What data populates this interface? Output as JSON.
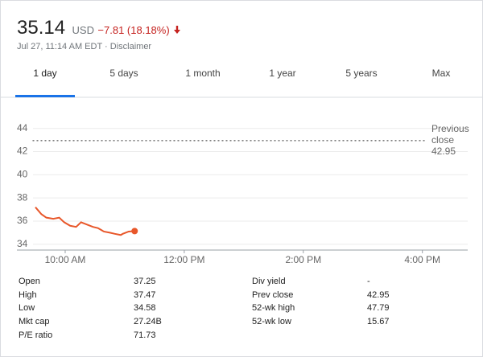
{
  "header": {
    "price": "35.14",
    "currency": "USD",
    "change": "−7.81 (18.18%)",
    "timestamp": "Jul 27, 11:14 AM EDT · Disclaimer"
  },
  "tabs": [
    "1 day",
    "5 days",
    "1 month",
    "1 year",
    "5 years",
    "Max"
  ],
  "chart_data": {
    "type": "line",
    "x": [
      570,
      576,
      581,
      588,
      594,
      599,
      605,
      611,
      616,
      622,
      628,
      633,
      639,
      645,
      650,
      656,
      658,
      664,
      670
    ],
    "series": [
      {
        "color": "#e8572a",
        "values": [
          37.2,
          36.6,
          36.3,
          36.2,
          36.3,
          35.9,
          35.6,
          35.5,
          35.9,
          35.7,
          35.5,
          35.4,
          35.1,
          35.0,
          34.9,
          34.8,
          34.9,
          35.1,
          35.14
        ]
      }
    ],
    "xlim": [
      570,
      1000
    ],
    "xticks": [
      {
        "value": 600,
        "label": "10:00 AM"
      },
      {
        "value": 720,
        "label": "12:00 PM"
      },
      {
        "value": 840,
        "label": "2:00 PM"
      },
      {
        "value": 960,
        "label": "4:00 PM"
      }
    ],
    "ylim": [
      33.5,
      45.3
    ],
    "yticks": [
      34,
      36,
      38,
      40,
      42,
      44
    ],
    "grid": true,
    "reference": {
      "label": "Previous close",
      "value": 42.95
    }
  },
  "stats": {
    "left": [
      {
        "label": "Open",
        "value": "37.25"
      },
      {
        "label": "High",
        "value": "37.47"
      },
      {
        "label": "Low",
        "value": "34.58"
      },
      {
        "label": "Mkt cap",
        "value": "27.24B"
      },
      {
        "label": "P/E ratio",
        "value": "71.73"
      }
    ],
    "right": [
      {
        "label": "Div yield",
        "value": "-"
      },
      {
        "label": "Prev close",
        "value": "42.95"
      },
      {
        "label": "52-wk high",
        "value": "47.79"
      },
      {
        "label": "52-wk low",
        "value": "15.67"
      }
    ]
  }
}
